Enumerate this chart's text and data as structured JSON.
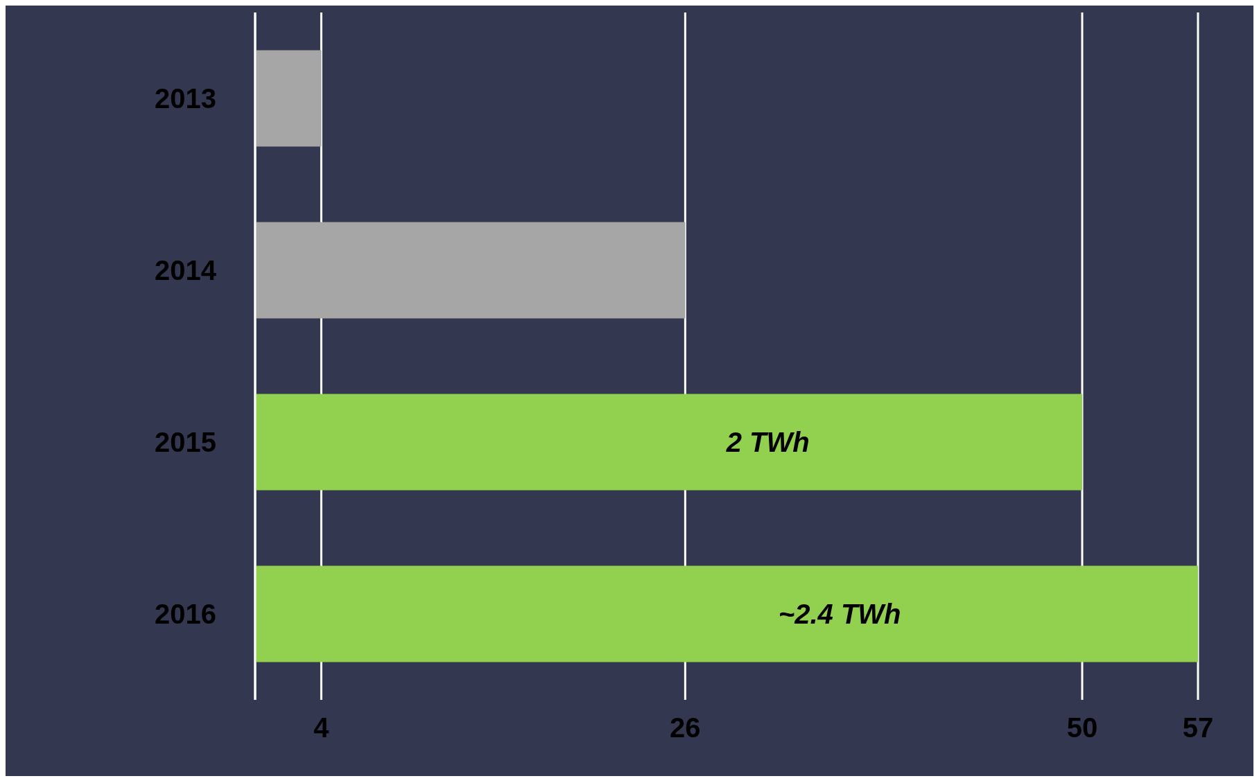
{
  "chart_data": {
    "type": "bar",
    "orientation": "horizontal",
    "categories": [
      "2013",
      "2014",
      "2015",
      "2016"
    ],
    "values": [
      4,
      26,
      50,
      57
    ],
    "colors": [
      "#a6a6a6",
      "#a6a6a6",
      "#92d050",
      "#92d050"
    ],
    "annotations": [
      "2 TWh",
      "~2.4 TWh"
    ],
    "xlim": [
      0,
      57
    ],
    "xticks": [
      4,
      26,
      50,
      57
    ],
    "grid": "x"
  }
}
